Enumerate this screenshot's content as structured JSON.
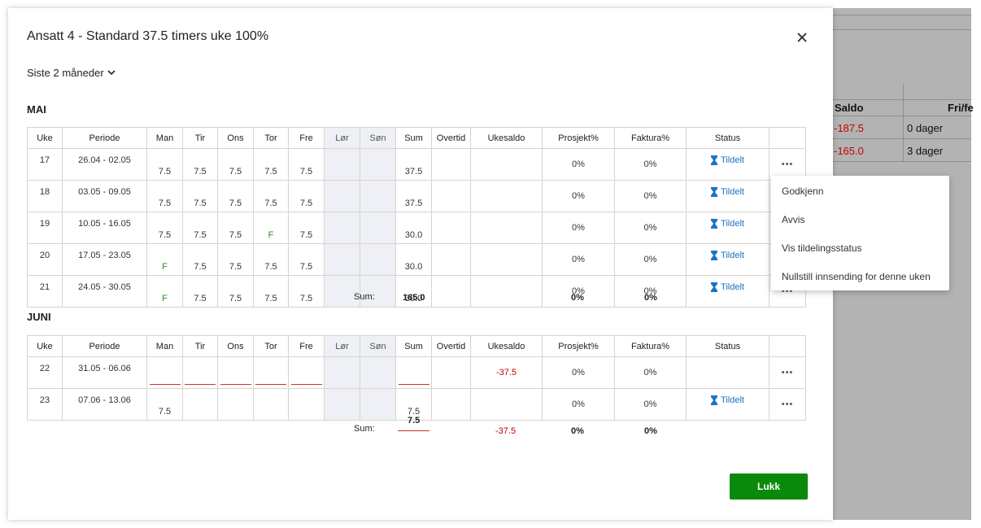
{
  "background": {
    "header_saldo": "Saldo",
    "header_fri": "Fri/fe",
    "rows": [
      {
        "saldo": "-187.5",
        "fri": "0 dager"
      },
      {
        "saldo": "-165.0",
        "fri": "3 dager"
      }
    ]
  },
  "dialog": {
    "title": "Ansatt 4 - Standard 37.5 timers uke 100%",
    "period": "Siste 2 måneder",
    "columns": [
      "Uke",
      "Periode",
      "Man",
      "Tir",
      "Ons",
      "Tor",
      "Fre",
      "Lør",
      "Søn",
      "Sum",
      "Overtid",
      "Ukesaldo",
      "Prosjekt%",
      "Faktura%",
      "Status"
    ],
    "months": [
      {
        "name": "MAI",
        "rows": [
          {
            "uke": "17",
            "periode": "26.04 - 02.05",
            "man": "7.5",
            "tir": "7.5",
            "ons": "7.5",
            "tor": "7.5",
            "fre": "7.5",
            "sum": "37.5",
            "ukesaldo": "",
            "prosjekt": "0%",
            "faktura": "0%",
            "status": "Tildelt"
          },
          {
            "uke": "18",
            "periode": "03.05 - 09.05",
            "man": "7.5",
            "tir": "7.5",
            "ons": "7.5",
            "tor": "7.5",
            "fre": "7.5",
            "sum": "37.5",
            "ukesaldo": "",
            "prosjekt": "0%",
            "faktura": "0%",
            "status": "Tildelt"
          },
          {
            "uke": "19",
            "periode": "10.05 - 16.05",
            "man": "7.5",
            "tir": "7.5",
            "ons": "7.5",
            "tor": "F",
            "fre": "7.5",
            "sum": "30.0",
            "ukesaldo": "",
            "prosjekt": "0%",
            "faktura": "0%",
            "status": "Tildelt"
          },
          {
            "uke": "20",
            "periode": "17.05 - 23.05",
            "man": "F",
            "tir": "7.5",
            "ons": "7.5",
            "tor": "7.5",
            "fre": "7.5",
            "sum": "30.0",
            "ukesaldo": "",
            "prosjekt": "0%",
            "faktura": "0%",
            "status": "Tildelt"
          },
          {
            "uke": "21",
            "periode": "24.05 - 30.05",
            "man": "F",
            "tir": "7.5",
            "ons": "7.5",
            "tor": "7.5",
            "fre": "7.5",
            "sum": "30.0",
            "ukesaldo": "",
            "prosjekt": "0%",
            "faktura": "0%",
            "status": "Tildelt"
          }
        ],
        "sum_label": "Sum:",
        "sum": "165.0",
        "sum_ukesaldo": "",
        "sum_prosjekt": "0%",
        "sum_faktura": "0%"
      },
      {
        "name": "JUNI",
        "rows": [
          {
            "uke": "22",
            "periode": "31.05 - 06.06",
            "man": "",
            "tir": "",
            "ons": "",
            "tor": "",
            "fre": "",
            "sum": "",
            "ukesaldo": "-37.5",
            "prosjekt": "0%",
            "faktura": "0%",
            "status": ""
          },
          {
            "uke": "23",
            "periode": "07.06 - 13.06",
            "man": "7.5",
            "tir": "",
            "ons": "",
            "tor": "",
            "fre": "",
            "sum": "7.5",
            "ukesaldo": "",
            "prosjekt": "0%",
            "faktura": "0%",
            "status": "Tildelt"
          }
        ],
        "sum_label": "Sum:",
        "sum": "7.5",
        "sum_ukesaldo": "-37.5",
        "sum_prosjekt": "0%",
        "sum_faktura": "0%"
      }
    ],
    "more_label": "•••",
    "close_label": "Lukk"
  },
  "context_menu": {
    "items": [
      "Godkjenn",
      "Avvis",
      "Vis tildelingsstatus",
      "Nullstill innsending for denne uken"
    ]
  },
  "colors": {
    "accent_green": "#0a8a0a",
    "link_blue": "#1a73c4",
    "negative_red": "#c40000",
    "free_day_green": "#2c8f2c"
  },
  "icons": {
    "close": "close-icon",
    "chevron": "chevron-down-icon",
    "status": "hourglass-icon",
    "more": "more-icon"
  }
}
